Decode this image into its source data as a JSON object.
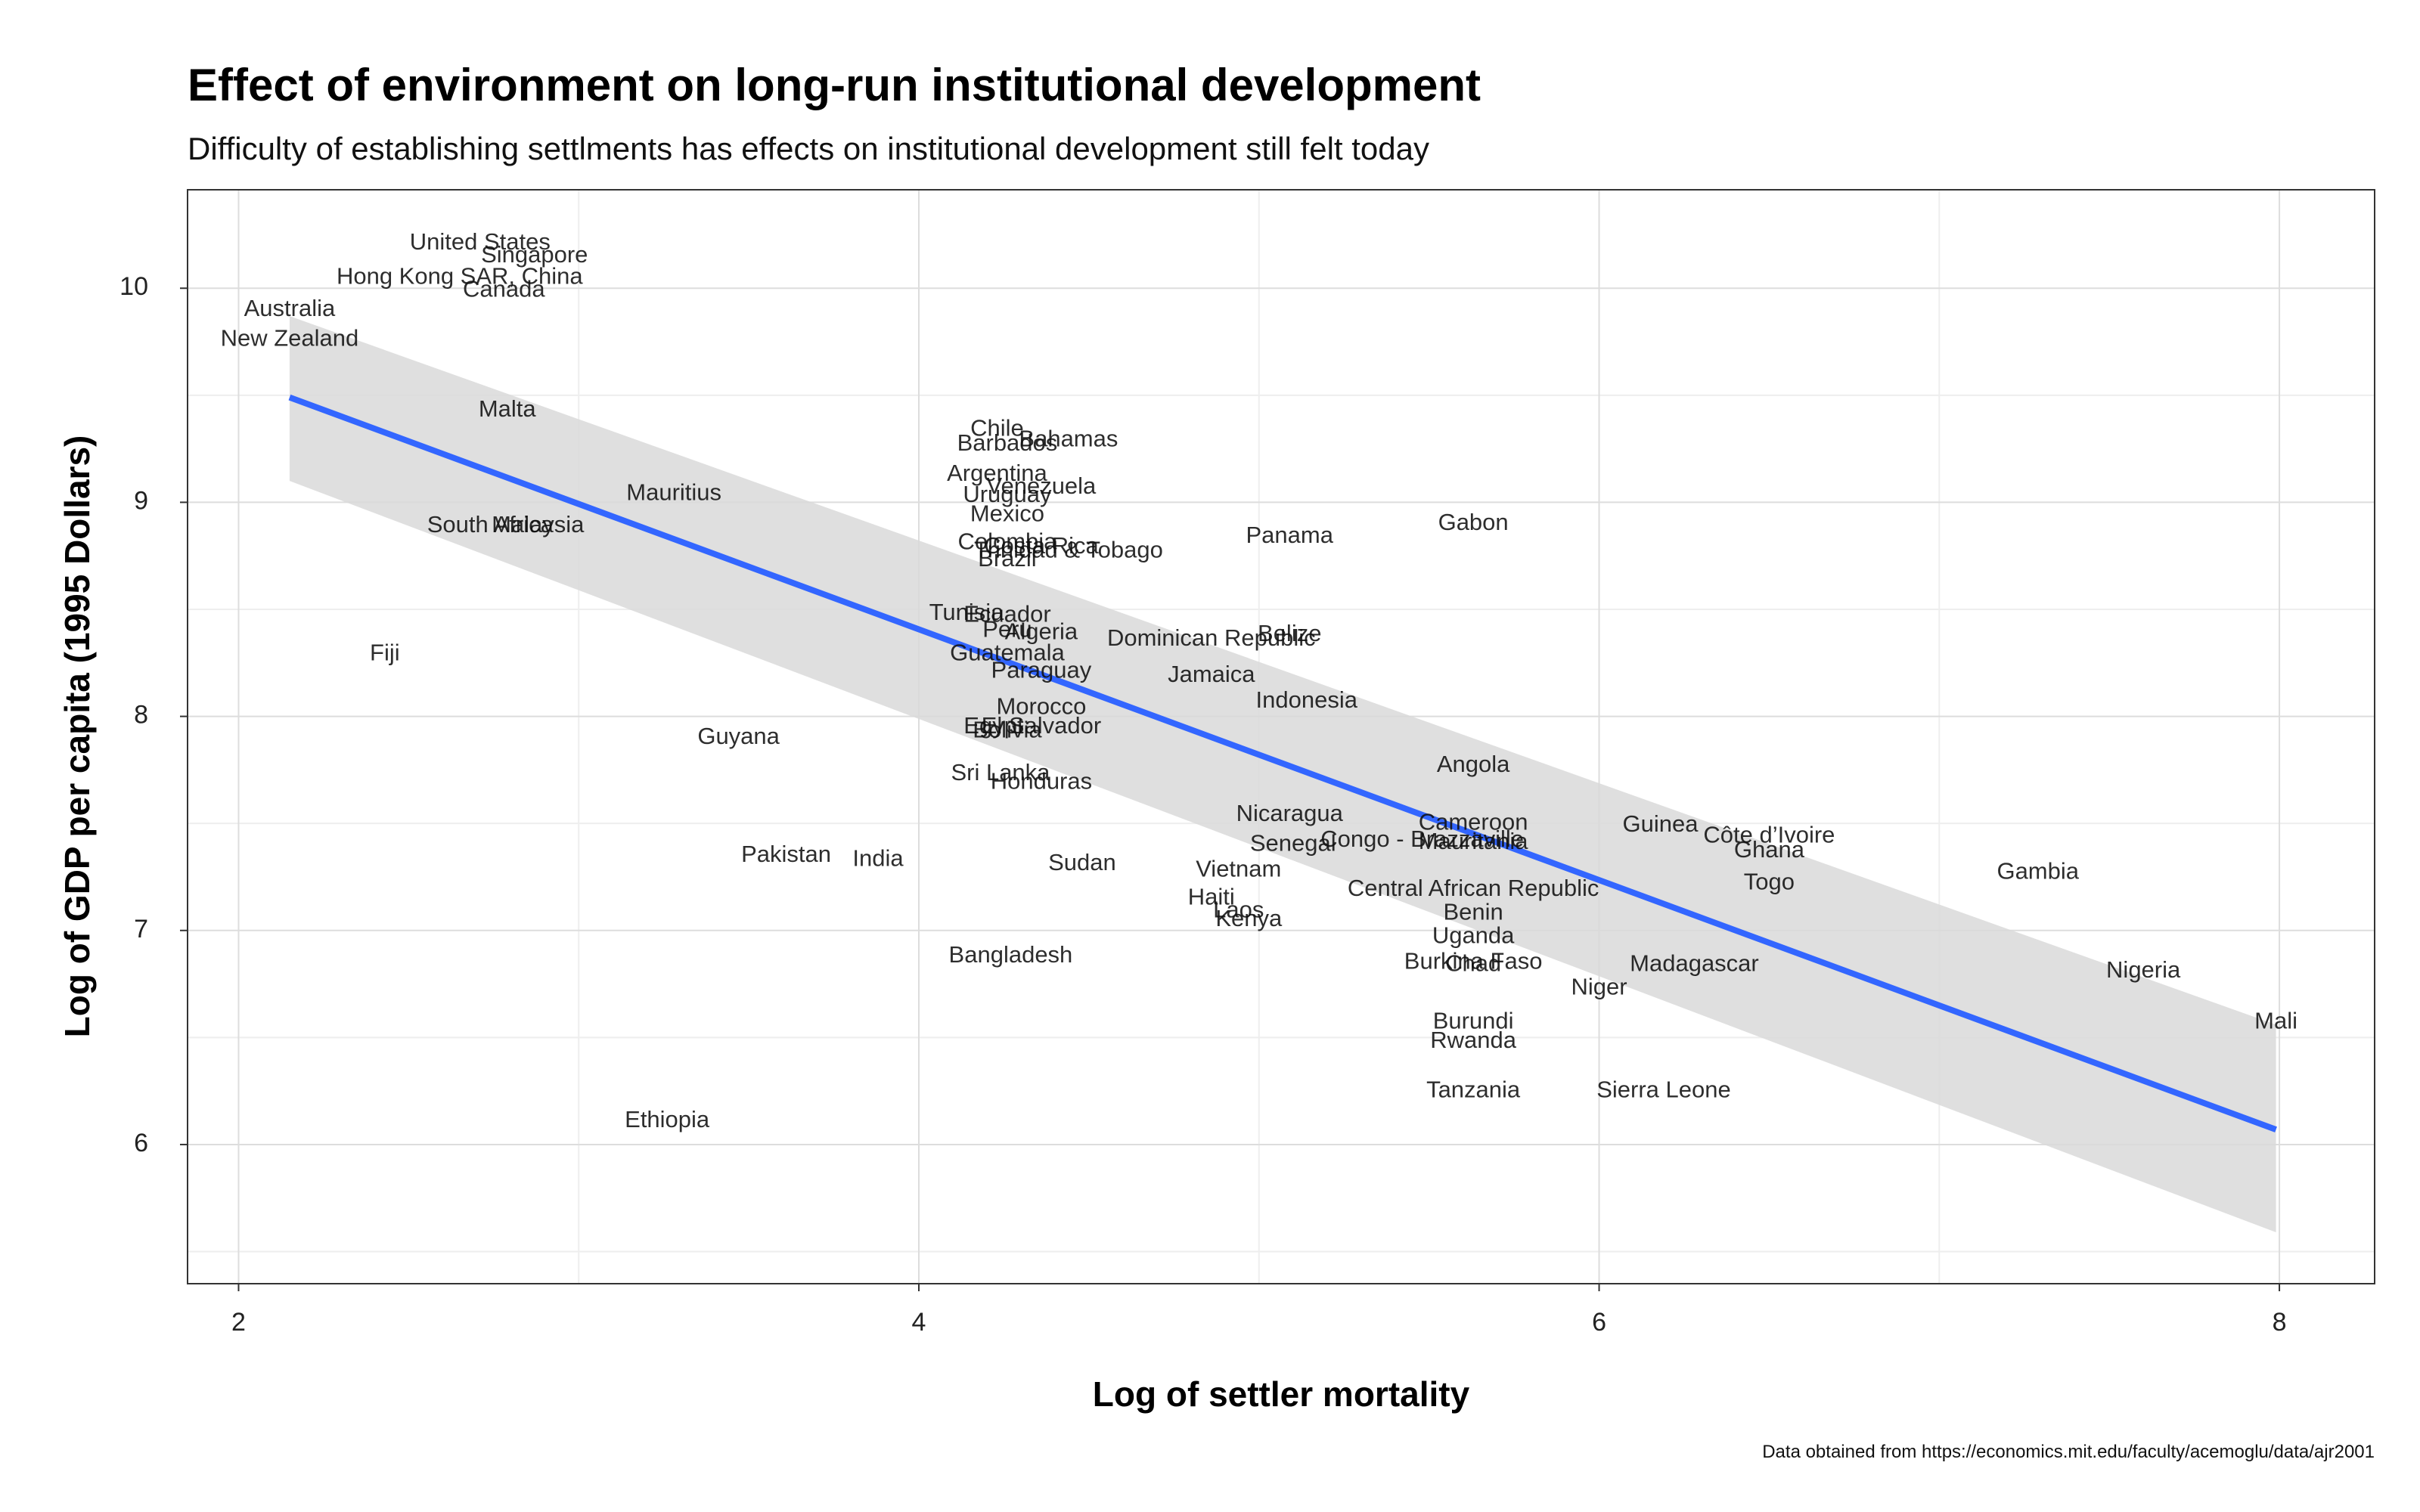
{
  "chart_data": {
    "type": "scatter",
    "title": "Effect of environment on long-run institutional development",
    "subtitle": "Difficulty of establishing settlments has effects on institutional development still felt today",
    "xlabel": "Log of settler mortality",
    "ylabel": "Log of GDP per capita (1995 Dollars)",
    "caption": "Data obtained from https://economics.mit.edu/faculty/acemoglu/data/ajr2001",
    "xlim": [
      1.85,
      8.28
    ],
    "ylim": [
      5.35,
      10.46
    ],
    "xticks": [
      2,
      4,
      6,
      8
    ],
    "yticks": [
      6,
      7,
      8,
      9,
      10
    ],
    "grid": true,
    "legend": "none",
    "colors": {
      "trend_line": "#3366ff",
      "confidence_band": "#d9d9d9",
      "panel_border": "#333333",
      "grid": "#dddddd"
    },
    "points": [
      {
        "label": "United States",
        "x": 2.71,
        "y": 10.21
      },
      {
        "label": "Singapore",
        "x": 2.87,
        "y": 10.15
      },
      {
        "label": "Hong Kong SAR, China",
        "x": 2.65,
        "y": 10.05
      },
      {
        "label": "Canada",
        "x": 2.78,
        "y": 9.99
      },
      {
        "label": "Australia",
        "x": 2.15,
        "y": 9.9
      },
      {
        "label": "New Zealand",
        "x": 2.15,
        "y": 9.76
      },
      {
        "label": "Malta",
        "x": 2.79,
        "y": 9.43
      },
      {
        "label": "Mauritius",
        "x": 3.28,
        "y": 9.04
      },
      {
        "label": "South Africa",
        "x": 2.74,
        "y": 8.89
      },
      {
        "label": "Malaysia",
        "x": 2.88,
        "y": 8.89
      },
      {
        "label": "Fiji",
        "x": 2.43,
        "y": 8.29
      },
      {
        "label": "Guyana",
        "x": 3.47,
        "y": 7.9
      },
      {
        "label": "Pakistan",
        "x": 3.61,
        "y": 7.35
      },
      {
        "label": "India",
        "x": 3.88,
        "y": 7.33
      },
      {
        "label": "Ethiopia",
        "x": 3.26,
        "y": 6.11
      },
      {
        "label": "Chile",
        "x": 4.23,
        "y": 9.34
      },
      {
        "label": "Bahamas",
        "x": 4.44,
        "y": 9.29
      },
      {
        "label": "Barbados",
        "x": 4.26,
        "y": 9.27
      },
      {
        "label": "Argentina",
        "x": 4.23,
        "y": 9.13
      },
      {
        "label": "Venezuela",
        "x": 4.36,
        "y": 9.07
      },
      {
        "label": "Uruguay",
        "x": 4.26,
        "y": 9.03
      },
      {
        "label": "Mexico",
        "x": 4.26,
        "y": 8.94
      },
      {
        "label": "Colombia",
        "x": 4.26,
        "y": 8.81
      },
      {
        "label": "Costa Rica",
        "x": 4.36,
        "y": 8.79
      },
      {
        "label": "Trinidad & Tobago",
        "x": 4.44,
        "y": 8.77
      },
      {
        "label": "Panama",
        "x": 5.09,
        "y": 8.84
      },
      {
        "label": "Gabon",
        "x": 5.63,
        "y": 8.9
      },
      {
        "label": "Brazil",
        "x": 4.26,
        "y": 8.73
      },
      {
        "label": "Tunisia",
        "x": 4.14,
        "y": 8.48
      },
      {
        "label": "Ecuador",
        "x": 4.26,
        "y": 8.47
      },
      {
        "label": "Algeria",
        "x": 4.36,
        "y": 8.39
      },
      {
        "label": "Peru",
        "x": 4.26,
        "y": 8.4
      },
      {
        "label": "Guatemala",
        "x": 4.26,
        "y": 8.29
      },
      {
        "label": "Paraguay",
        "x": 4.36,
        "y": 8.21
      },
      {
        "label": "Dominican Republic",
        "x": 4.86,
        "y": 8.36
      },
      {
        "label": "Belize",
        "x": 5.09,
        "y": 8.38
      },
      {
        "label": "Jamaica",
        "x": 4.86,
        "y": 8.19
      },
      {
        "label": "Indonesia",
        "x": 5.14,
        "y": 8.07
      },
      {
        "label": "Morocco",
        "x": 4.36,
        "y": 8.04
      },
      {
        "label": "Egypt",
        "x": 4.22,
        "y": 7.95
      },
      {
        "label": "El Salvador",
        "x": 4.36,
        "y": 7.95
      },
      {
        "label": "Bolivia",
        "x": 4.26,
        "y": 7.93
      },
      {
        "label": "Sri Lanka",
        "x": 4.24,
        "y": 7.73
      },
      {
        "label": "Honduras",
        "x": 4.36,
        "y": 7.69
      },
      {
        "label": "Angola",
        "x": 5.63,
        "y": 7.77
      },
      {
        "label": "Nicaragua",
        "x": 5.09,
        "y": 7.54
      },
      {
        "label": "Senegal",
        "x": 5.1,
        "y": 7.4
      },
      {
        "label": "Congo - Brazzaville",
        "x": 5.48,
        "y": 7.42
      },
      {
        "label": "Cameroon",
        "x": 5.63,
        "y": 7.5
      },
      {
        "label": "Mauritania",
        "x": 5.63,
        "y": 7.41
      },
      {
        "label": "Sudan",
        "x": 4.48,
        "y": 7.31
      },
      {
        "label": "Vietnam",
        "x": 4.94,
        "y": 7.28
      },
      {
        "label": "Haiti",
        "x": 4.86,
        "y": 7.15
      },
      {
        "label": "Laos",
        "x": 4.94,
        "y": 7.09
      },
      {
        "label": "Kenya",
        "x": 4.97,
        "y": 7.05
      },
      {
        "label": "Central African Republic",
        "x": 5.63,
        "y": 7.19
      },
      {
        "label": "Benin",
        "x": 5.63,
        "y": 7.08
      },
      {
        "label": "Uganda",
        "x": 5.63,
        "y": 6.97
      },
      {
        "label": "Burkina Faso",
        "x": 5.63,
        "y": 6.85
      },
      {
        "label": "Chad",
        "x": 5.63,
        "y": 6.84
      },
      {
        "label": "Bangladesh",
        "x": 4.27,
        "y": 6.88
      },
      {
        "label": "Guinea",
        "x": 6.18,
        "y": 7.49
      },
      {
        "label": "Côte d’Ivoire",
        "x": 6.5,
        "y": 7.44
      },
      {
        "label": "Ghana",
        "x": 6.5,
        "y": 7.37
      },
      {
        "label": "Togo",
        "x": 6.5,
        "y": 7.22
      },
      {
        "label": "Gambia",
        "x": 7.29,
        "y": 7.27
      },
      {
        "label": "Madagascar",
        "x": 6.28,
        "y": 6.84
      },
      {
        "label": "Niger",
        "x": 6.0,
        "y": 6.73
      },
      {
        "label": "Nigeria",
        "x": 7.6,
        "y": 6.81
      },
      {
        "label": "Mali",
        "x": 7.99,
        "y": 6.57
      },
      {
        "label": "Burundi",
        "x": 5.63,
        "y": 6.57
      },
      {
        "label": "Rwanda",
        "x": 5.63,
        "y": 6.48
      },
      {
        "label": "Tanzania",
        "x": 5.63,
        "y": 6.25
      },
      {
        "label": "Sierra Leone",
        "x": 6.19,
        "y": 6.25
      }
    ],
    "trend": {
      "method": "linear",
      "x": [
        2.15,
        7.99
      ],
      "y": [
        9.49,
        6.07
      ],
      "ci_lower": [
        9.1,
        5.59
      ],
      "ci_upper": [
        9.87,
        6.56
      ]
    }
  }
}
